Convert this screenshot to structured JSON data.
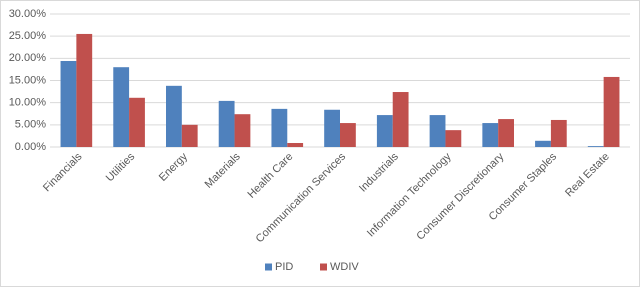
{
  "chart_data": {
    "type": "bar",
    "categories": [
      "Financials",
      "Utilities",
      "Energy",
      "Materials",
      "Health Care",
      "Communication Services",
      "Industrials",
      "Information Technology",
      "Consumer Discretionary",
      "Consumer Staples",
      "Real Estate"
    ],
    "series": [
      {
        "name": "PID",
        "color": "#4f81bd",
        "values": [
          19.4,
          18.0,
          13.8,
          10.4,
          8.6,
          8.4,
          7.2,
          7.2,
          5.4,
          1.4,
          0.2
        ]
      },
      {
        "name": "WDIV",
        "color": "#c0504d",
        "values": [
          25.5,
          11.1,
          5.0,
          7.4,
          0.9,
          5.4,
          12.4,
          3.8,
          6.3,
          6.1,
          15.8
        ]
      }
    ],
    "ylim": [
      0,
      30
    ],
    "yticks": [
      {
        "value": 0,
        "label": "0.00%"
      },
      {
        "value": 5,
        "label": "5.00%"
      },
      {
        "value": 10,
        "label": "10.00%"
      },
      {
        "value": 15,
        "label": "15.00%"
      },
      {
        "value": 20,
        "label": "20.00%"
      },
      {
        "value": 25,
        "label": "25.00%"
      },
      {
        "value": 30,
        "label": "30.00%"
      }
    ],
    "grid": true,
    "legend": "bottom"
  }
}
